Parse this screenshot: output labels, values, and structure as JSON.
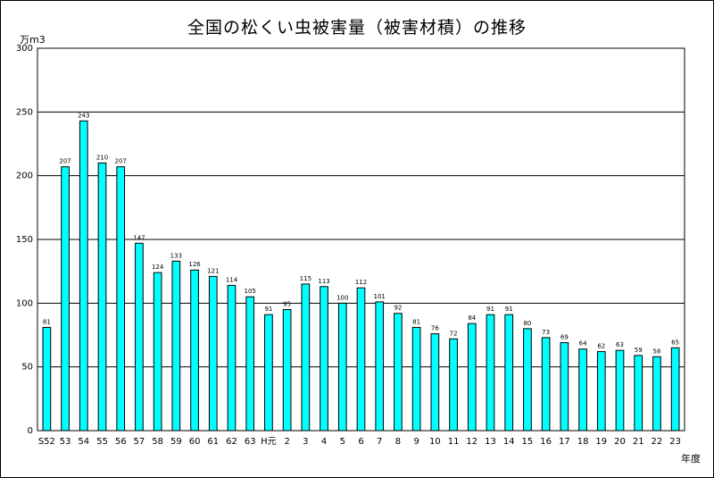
{
  "chart_data": {
    "type": "bar",
    "title": "全国の松くい虫被害量（被害材積）の推移",
    "ylabel": "万m3",
    "xlabel": "年度",
    "ylim": [
      0,
      300
    ],
    "yticks": [
      0,
      50,
      100,
      150,
      200,
      250,
      300
    ],
    "grid": true,
    "bar_color": "#00ffff",
    "bar_edge": "#000000",
    "categories": [
      "S52",
      "53",
      "54",
      "55",
      "56",
      "57",
      "58",
      "59",
      "60",
      "61",
      "62",
      "63",
      "H元",
      "2",
      "3",
      "4",
      "5",
      "6",
      "7",
      "8",
      "9",
      "10",
      "11",
      "12",
      "13",
      "14",
      "15",
      "16",
      "17",
      "18",
      "19",
      "20",
      "21",
      "22",
      "23"
    ],
    "values": [
      81,
      207,
      243,
      210,
      207,
      147,
      124,
      133,
      126,
      121,
      114,
      105,
      91,
      95,
      115,
      113,
      100,
      112,
      101,
      92,
      81,
      76,
      72,
      84,
      91,
      91,
      80,
      73,
      69,
      64,
      62,
      63,
      59,
      58,
      65
    ]
  }
}
